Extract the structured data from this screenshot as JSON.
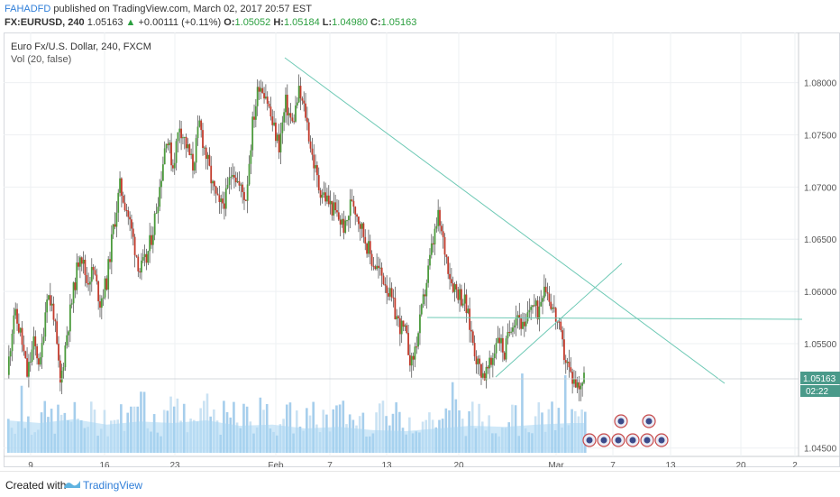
{
  "header": {
    "author": "FAHADFD",
    "published": "published on TradingView.com, March 02, 2017 20:57 EST",
    "symbol": "FX:EURUSD, 240",
    "last": "1.05163",
    "change": "+0.00111 (+0.11%)",
    "open_label": "O:",
    "open": "1.05052",
    "high_label": "H:",
    "high": "1.05184",
    "low_label": "L:",
    "low": "1.04980",
    "close_label": "C:",
    "close": "1.05163"
  },
  "legend": {
    "title": "Euro Fx/U.S. Dollar, 240, FXCM",
    "volume": "Vol (20, false)"
  },
  "footer": {
    "created_with": "Created with",
    "brand": "TradingView"
  },
  "colors": {
    "up": "#4b9a3c",
    "down": "#c23b2c",
    "trendline": "#6ec9b5",
    "volume_ma": "#a7d6f3",
    "price_label": "#4a9a8a",
    "grid": "#eef0f3"
  },
  "chart_data": {
    "type": "candlestick",
    "symbol": "EURUSD",
    "timeframe": "240",
    "ylim": [
      1.0442,
      1.0848
    ],
    "y_ticks": [
      "1.08000",
      "1.07500",
      "1.07000",
      "1.06500",
      "1.06000",
      "1.05500",
      "1.04500"
    ],
    "x_ticks": [
      "9",
      "16",
      "23",
      "Feb",
      "7",
      "13",
      "20",
      "Mar",
      "7",
      "13",
      "20",
      "2"
    ],
    "current_price": "1.05163",
    "countdown": "02:22",
    "price_path": [
      [
        0,
        1.052
      ],
      [
        4,
        1.058
      ],
      [
        8,
        1.056
      ],
      [
        12,
        1.052
      ],
      [
        16,
        1.055
      ],
      [
        20,
        1.053
      ],
      [
        24,
        1.06
      ],
      [
        28,
        1.058
      ],
      [
        32,
        1.051
      ],
      [
        36,
        1.056
      ],
      [
        40,
        1.06
      ],
      [
        44,
        1.064
      ],
      [
        48,
        1.061
      ],
      [
        52,
        1.062
      ],
      [
        56,
        1.059
      ],
      [
        60,
        1.061
      ],
      [
        64,
        1.066
      ],
      [
        68,
        1.07
      ],
      [
        72,
        1.068
      ],
      [
        76,
        1.065
      ],
      [
        80,
        1.062
      ],
      [
        84,
        1.063
      ],
      [
        88,
        1.066
      ],
      [
        92,
        1.07
      ],
      [
        96,
        1.075
      ],
      [
        100,
        1.072
      ],
      [
        104,
        1.076
      ],
      [
        108,
        1.074
      ],
      [
        112,
        1.072
      ],
      [
        116,
        1.076
      ],
      [
        120,
        1.073
      ],
      [
        124,
        1.07
      ],
      [
        128,
        1.068
      ],
      [
        132,
        1.069
      ],
      [
        136,
        1.072
      ],
      [
        140,
        1.07
      ],
      [
        144,
        1.069
      ],
      [
        148,
        1.076
      ],
      [
        152,
        1.08
      ],
      [
        156,
        1.079
      ],
      [
        160,
        1.076
      ],
      [
        164,
        1.074
      ],
      [
        168,
        1.078
      ],
      [
        172,
        1.076
      ],
      [
        176,
        1.079
      ],
      [
        180,
        1.077
      ],
      [
        184,
        1.073
      ],
      [
        188,
        1.07
      ],
      [
        192,
        1.069
      ],
      [
        196,
        1.068
      ],
      [
        200,
        1.067
      ],
      [
        204,
        1.066
      ],
      [
        208,
        1.069
      ],
      [
        212,
        1.067
      ],
      [
        216,
        1.065
      ],
      [
        220,
        1.063
      ],
      [
        224,
        1.062
      ],
      [
        228,
        1.061
      ],
      [
        232,
        1.059
      ],
      [
        236,
        1.057
      ],
      [
        240,
        1.056
      ],
      [
        244,
        1.053
      ],
      [
        248,
        1.056
      ],
      [
        252,
        1.06
      ],
      [
        256,
        1.064
      ],
      [
        260,
        1.067
      ],
      [
        264,
        1.064
      ],
      [
        268,
        1.061
      ],
      [
        272,
        1.06
      ],
      [
        276,
        1.059
      ],
      [
        280,
        1.056
      ],
      [
        284,
        1.053
      ],
      [
        288,
        1.052
      ],
      [
        292,
        1.053
      ],
      [
        296,
        1.056
      ],
      [
        300,
        1.054
      ],
      [
        304,
        1.057
      ],
      [
        308,
        1.058
      ],
      [
        312,
        1.056
      ],
      [
        316,
        1.059
      ],
      [
        320,
        1.058
      ],
      [
        324,
        1.061
      ],
      [
        328,
        1.059
      ],
      [
        332,
        1.057
      ],
      [
        336,
        1.054
      ],
      [
        340,
        1.052
      ],
      [
        344,
        1.051
      ],
      [
        348,
        1.0516
      ]
    ],
    "volume_ma_path": [
      [
        0,
        0.6
      ],
      [
        20,
        0.55
      ],
      [
        40,
        0.62
      ],
      [
        60,
        0.52
      ],
      [
        80,
        0.58
      ],
      [
        100,
        0.55
      ],
      [
        120,
        0.6
      ],
      [
        140,
        0.5
      ],
      [
        160,
        0.52
      ],
      [
        180,
        0.45
      ],
      [
        200,
        0.48
      ],
      [
        220,
        0.42
      ],
      [
        240,
        0.4
      ],
      [
        260,
        0.45
      ],
      [
        280,
        0.5
      ],
      [
        300,
        0.48
      ],
      [
        320,
        0.52
      ],
      [
        340,
        0.55
      ],
      [
        348,
        0.55
      ]
    ]
  }
}
